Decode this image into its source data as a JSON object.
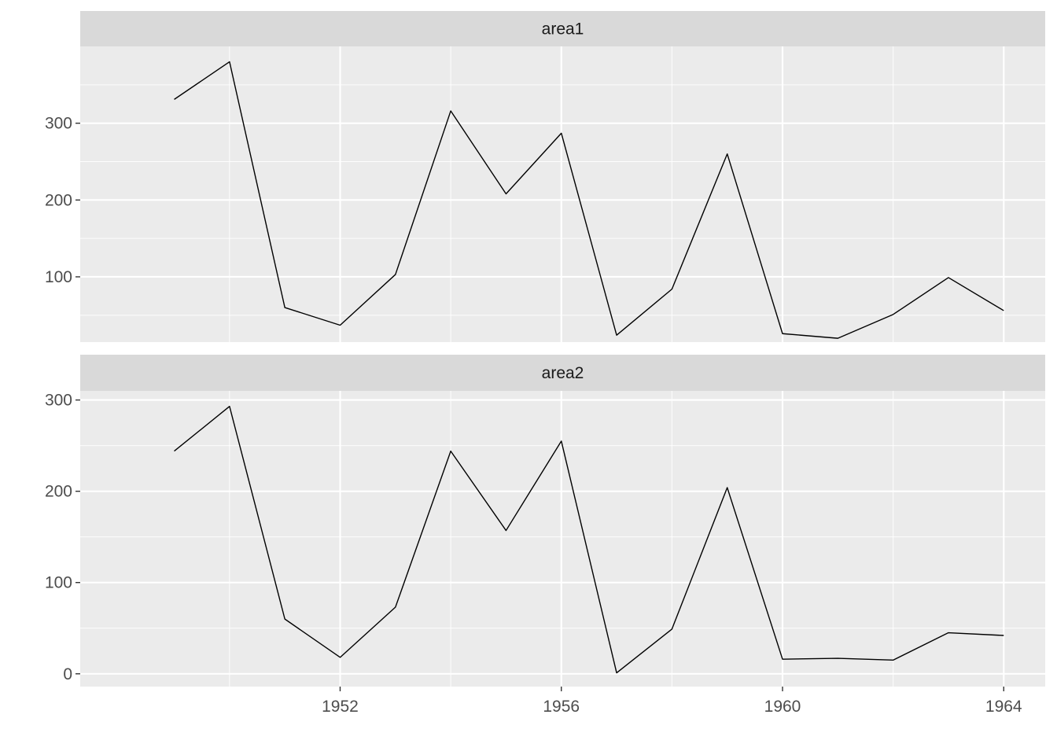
{
  "chart_data": [
    {
      "type": "line",
      "facet": "area1",
      "x": [
        1949,
        1950,
        1951,
        1952,
        1953,
        1954,
        1955,
        1956,
        1957,
        1958,
        1959,
        1960,
        1961,
        1962,
        1963,
        1964
      ],
      "values": [
        331,
        380,
        60,
        37,
        103,
        316,
        208,
        287,
        24,
        84,
        260,
        26,
        20,
        51,
        99,
        56
      ],
      "ylim": [
        15,
        400
      ],
      "yticks": [
        100,
        200,
        300
      ],
      "grid": true
    },
    {
      "type": "line",
      "facet": "area2",
      "x": [
        1949,
        1950,
        1951,
        1952,
        1953,
        1954,
        1955,
        1956,
        1957,
        1958,
        1959,
        1960,
        1961,
        1962,
        1963,
        1964
      ],
      "values": [
        244,
        293,
        60,
        18,
        73,
        244,
        157,
        255,
        1,
        49,
        204,
        16,
        17,
        15,
        45,
        42
      ],
      "ylim": [
        -14,
        310
      ],
      "yticks": [
        0,
        100,
        200,
        300
      ],
      "grid": true
    }
  ],
  "x_axis": {
    "xlim": [
      1947.3,
      1964.75
    ],
    "ticks": [
      1952,
      1956,
      1960,
      1964
    ]
  },
  "colors": {
    "panel": "#ebebeb",
    "strip": "#d9d9d9",
    "grid": "#ffffff",
    "line": "#000000",
    "text": "#4d4d4d"
  }
}
